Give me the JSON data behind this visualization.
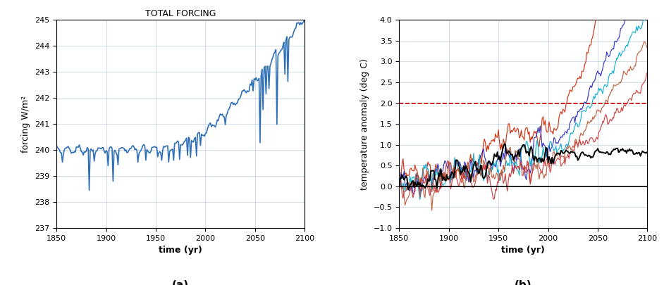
{
  "panel_a": {
    "title": "TOTAL FORCING",
    "xlabel": "time (yr)",
    "ylabel": "forcing W/m²",
    "xlim": [
      1850,
      2100
    ],
    "ylim": [
      237,
      245
    ],
    "yticks": [
      237,
      238,
      239,
      240,
      241,
      242,
      243,
      244,
      245
    ],
    "xticks": [
      1850,
      1900,
      1950,
      2000,
      2050,
      2100
    ],
    "line_color": "#3070b8",
    "line_width": 1.2,
    "label": "(a)"
  },
  "panel_b": {
    "xlabel": "time (yr)",
    "ylabel": "temperature anomaly (deg C)",
    "xlim": [
      1850,
      2100
    ],
    "ylim": [
      -1,
      4
    ],
    "yticks": [
      -1,
      -0.5,
      0,
      0.5,
      1,
      1.5,
      2,
      2.5,
      3,
      3.5,
      4
    ],
    "xticks": [
      1850,
      1900,
      1950,
      2000,
      2050,
      2100
    ],
    "dashed_line_y": 2.0,
    "dashed_line_color": "#cc0000",
    "zero_line_color": "#000000",
    "colors": [
      "#cc2200",
      "#2222bb",
      "#00aacc",
      "#bb5533",
      "#cc3333"
    ],
    "label": "(b)"
  },
  "background_color": "#ffffff",
  "grid_color": "#b0c4de",
  "grid_alpha": 0.8
}
